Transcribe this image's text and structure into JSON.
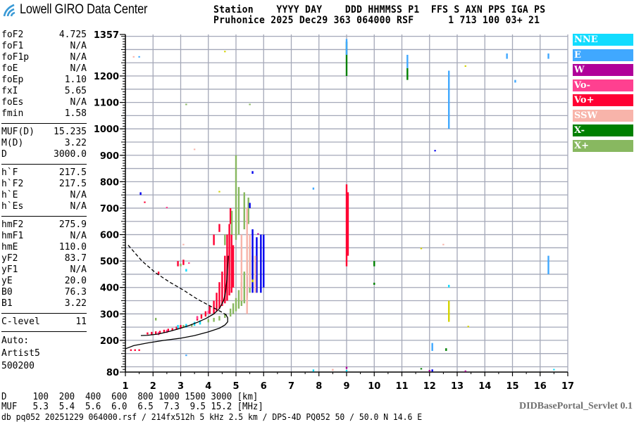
{
  "logo": {
    "text": "Lowell GIRO Data Center"
  },
  "header": {
    "line1": "Station    YYYY DAY    DDD HHMMSS P1  FFS S AXN PPS IGA PS",
    "line2": "Pruhonice 2025 Dec29 363 064000 RSF      1 713 100 03+ 21"
  },
  "params": {
    "group1": [
      [
        "foF2",
        "4.725"
      ],
      [
        "foF1",
        "N/A"
      ],
      [
        "foF1p",
        "N/A"
      ],
      [
        "foE",
        "N/A"
      ],
      [
        "foEp",
        "1.10"
      ],
      [
        "fxI",
        "5.65"
      ],
      [
        "foEs",
        "N/A"
      ],
      [
        "fmin",
        "1.58"
      ]
    ],
    "group2": [
      [
        "MUF(D)",
        "15.235"
      ],
      [
        "M(D)",
        "3.22"
      ],
      [
        "D",
        "3000.0"
      ]
    ],
    "group3": [
      [
        "h`F",
        "217.5"
      ],
      [
        "h`F2",
        "217.5"
      ],
      [
        "h`E",
        "N/A"
      ],
      [
        "h`Es",
        "N/A"
      ]
    ],
    "group4": [
      [
        "hmF2",
        "275.9"
      ],
      [
        "hmF1",
        "N/A"
      ],
      [
        "hmE",
        "110.0"
      ],
      [
        "yF2",
        "83.7"
      ],
      [
        "yF1",
        "N/A"
      ],
      [
        "yE",
        "20.0"
      ],
      [
        "B0",
        "76.3"
      ],
      [
        "B1",
        "3.22"
      ]
    ],
    "group5": [
      [
        "C-level",
        "11"
      ]
    ],
    "autoscaler": [
      "Auto:",
      "Artist5",
      "500200"
    ]
  },
  "muf_table": {
    "d_row": "D     100  200  400  600  800 1000 1500 3000 [km]",
    "muf_row": "MUF   5.3  5.4  5.6  6.0  6.5  7.3  9.5 15.2 [MHz]"
  },
  "footer": {
    "file_info": "db pq052 20251229 064000.rsf / 214fx512h 5 kHz 2.5 km / DPS-4D PQ052 50 / 50.0 N 14.6 E",
    "servlet": "DIDBasePortal_Servlet 0.1"
  },
  "chart_data": {
    "type": "scatter",
    "xlim": [
      1,
      17
    ],
    "ylim": [
      80,
      1357
    ],
    "xticks": [
      1,
      2,
      3,
      4,
      5,
      6,
      7,
      8,
      9,
      10,
      11,
      12,
      13,
      14,
      15,
      16,
      17
    ],
    "yticks": [
      1357,
      1200,
      1100,
      1000,
      900,
      800,
      700,
      600,
      500,
      400,
      300,
      200,
      80
    ],
    "grid": true,
    "legend_placement": "right",
    "legend": [
      {
        "name": "NNE",
        "color": "#12dcff"
      },
      {
        "name": "E",
        "color": "#40a8ff"
      },
      {
        "name": "W",
        "color": "#b0009a"
      },
      {
        "name": "Vo-",
        "color": "#ff4090"
      },
      {
        "name": "Vo+",
        "color": "#ff0033"
      },
      {
        "name": "SSW",
        "color": "#f8b4aa"
      },
      {
        "name": "X-",
        "color": "#008000"
      },
      {
        "name": "X+",
        "color": "#88b860"
      }
    ],
    "series": [
      {
        "name": "Vo+",
        "color": "#ff0033",
        "streaks": [
          [
            1.2,
            160,
            166
          ],
          [
            1.35,
            160,
            166
          ],
          [
            1.5,
            160,
            166
          ],
          [
            1.8,
            222,
            230
          ],
          [
            1.95,
            222,
            232
          ],
          [
            2.1,
            222,
            234
          ],
          [
            2.25,
            225,
            236
          ],
          [
            2.4,
            228,
            240
          ],
          [
            2.55,
            232,
            244
          ],
          [
            2.7,
            236,
            246
          ],
          [
            2.85,
            240,
            252
          ],
          [
            3.0,
            245,
            258
          ],
          [
            3.6,
            275,
            290
          ],
          [
            3.75,
            282,
            298
          ],
          [
            3.9,
            290,
            310
          ],
          [
            4.05,
            300,
            330
          ],
          [
            4.2,
            300,
            350
          ],
          [
            4.3,
            310,
            380
          ],
          [
            4.4,
            320,
            420
          ],
          [
            4.5,
            330,
            460
          ],
          [
            4.6,
            340,
            520
          ],
          [
            4.68,
            350,
            600
          ],
          [
            4.76,
            370,
            640
          ],
          [
            4.84,
            380,
            600
          ],
          [
            4.9,
            400,
            560
          ],
          [
            4.2,
            560,
            600
          ],
          [
            4.4,
            610,
            640
          ],
          [
            4.8,
            640,
            700
          ],
          [
            9.0,
            480,
            790
          ],
          [
            9.05,
            520,
            760
          ],
          [
            2.2,
            450,
            460
          ],
          [
            2.9,
            480,
            500
          ],
          [
            3.1,
            485,
            505
          ],
          [
            1.7,
            720,
            725
          ]
        ]
      },
      {
        "name": "Vo-",
        "color": "#ff4090",
        "streaks": [
          [
            2.2,
            220,
            232
          ],
          [
            2.5,
            228,
            240
          ],
          [
            3.2,
            250,
            260
          ],
          [
            3.6,
            280,
            292
          ],
          [
            4.0,
            300,
            312
          ],
          [
            3.3,
            490,
            495
          ],
          [
            2.5,
            700,
            705
          ]
        ]
      },
      {
        "name": "X+",
        "color": "#88b860",
        "streaks": [
          [
            3.1,
            250,
            258
          ],
          [
            3.4,
            252,
            262
          ],
          [
            3.7,
            260,
            270
          ],
          [
            4.0,
            268,
            280
          ],
          [
            4.2,
            270,
            285
          ],
          [
            4.4,
            275,
            292
          ],
          [
            4.6,
            285,
            300
          ],
          [
            4.8,
            290,
            320
          ],
          [
            4.9,
            300,
            340
          ],
          [
            5.0,
            310,
            360
          ],
          [
            5.1,
            320,
            390
          ],
          [
            5.2,
            330,
            420
          ],
          [
            5.3,
            340,
            460
          ],
          [
            5.4,
            360,
            500
          ],
          [
            5.5,
            380,
            560
          ],
          [
            5.6,
            400,
            520
          ],
          [
            5.0,
            580,
            900
          ],
          [
            5.1,
            600,
            780
          ],
          [
            5.3,
            620,
            760
          ],
          [
            4.6,
            560,
            600
          ],
          [
            4.85,
            600,
            690
          ],
          [
            5.45,
            640,
            740
          ],
          [
            2.1,
            275,
            285
          ],
          [
            3.0,
            480,
            490
          ],
          [
            5.5,
            1090,
            1095
          ],
          [
            3.2,
            1090,
            1095
          ]
        ]
      },
      {
        "name": "X-",
        "color": "#008000",
        "streaks": [
          [
            9.0,
            1200,
            1330
          ],
          [
            10.0,
            480,
            500
          ],
          [
            10.0,
            410,
            418
          ],
          [
            11.2,
            1185,
            1230
          ],
          [
            12.6,
            160,
            170
          ],
          [
            11.7,
            90,
            95
          ]
        ]
      },
      {
        "name": "W",
        "color": "#b0009a",
        "streaks": [
          [
            5.8,
            600,
            605
          ],
          [
            12.0,
            82,
            88
          ],
          [
            13.3,
            82,
            86
          ],
          [
            9.0,
            92,
            100
          ]
        ]
      },
      {
        "name": "",
        "color": "#0000ee",
        "streaks": [
          [
            5.6,
            380,
            620
          ],
          [
            5.75,
            380,
            590
          ],
          [
            5.9,
            380,
            600
          ],
          [
            6.0,
            400,
            600
          ],
          [
            5.4,
            370,
            440
          ],
          [
            5.5,
            700,
            720
          ],
          [
            5.6,
            830,
            840
          ],
          [
            12.2,
            915,
            920
          ],
          [
            1.55,
            750,
            760
          ],
          [
            12.1,
            82,
            90
          ]
        ]
      },
      {
        "name": "E",
        "color": "#40a8ff",
        "streaks": [
          [
            11.2,
            1230,
            1280
          ],
          [
            12.7,
            1000,
            1220
          ],
          [
            16.3,
            450,
            520
          ],
          [
            12.1,
            160,
            190
          ],
          [
            14.8,
            1265,
            1285
          ],
          [
            16.3,
            1265,
            1285
          ],
          [
            15.1,
            1175,
            1185
          ],
          [
            7.8,
            770,
            778
          ],
          [
            9.0,
            1280,
            1340
          ],
          [
            1.5,
            1270,
            1275
          ],
          [
            3.2,
            142,
            146
          ]
        ]
      },
      {
        "name": "NNE",
        "color": "#12dcff",
        "streaks": [
          [
            2.9,
            245,
            258
          ],
          [
            3.2,
            248,
            262
          ],
          [
            3.5,
            255,
            270
          ],
          [
            3.7,
            260,
            275
          ],
          [
            7.8,
            82,
            90
          ],
          [
            12.7,
            400,
            410
          ],
          [
            16.5,
            88,
            92
          ],
          [
            9.0,
            82,
            88
          ],
          [
            3.2,
            460,
            470
          ]
        ]
      },
      {
        "name": "SSW",
        "color": "#f8b4aa",
        "streaks": [
          [
            5.2,
            350,
            600
          ],
          [
            5.4,
            300,
            700
          ],
          [
            5.5,
            400,
            600
          ],
          [
            5.7,
            380,
            520
          ],
          [
            3.5,
            920,
            925
          ],
          [
            1.3,
            1270,
            1275
          ],
          [
            3.1,
            560,
            565
          ],
          [
            8.5,
            85,
            92
          ],
          [
            12.5,
            560,
            565
          ]
        ]
      },
      {
        "name": "",
        "color": "#d4d400",
        "streaks": [
          [
            12.7,
            270,
            350
          ],
          [
            4.4,
            760,
            765
          ],
          [
            5.6,
            420,
            430
          ],
          [
            13.3,
            1235,
            1240
          ],
          [
            13.4,
            250,
            255
          ],
          [
            4.6,
            1290,
            1295
          ],
          [
            11.7,
            545,
            550
          ]
        ]
      }
    ],
    "traces": [
      {
        "style": "solid",
        "points": [
          [
            1.56,
            218
          ],
          [
            1.8,
            219
          ],
          [
            2.2,
            224
          ],
          [
            2.6,
            234
          ],
          [
            3.0,
            246
          ],
          [
            3.3,
            256
          ],
          [
            3.6,
            268
          ],
          [
            3.9,
            282
          ],
          [
            4.2,
            300
          ],
          [
            4.4,
            320
          ],
          [
            4.55,
            350
          ],
          [
            4.62,
            380
          ],
          [
            4.67,
            430
          ],
          [
            4.7,
            480
          ],
          [
            4.72,
            520
          ]
        ]
      },
      {
        "style": "solid",
        "points": [
          [
            1.0,
            168
          ],
          [
            1.3,
            180
          ],
          [
            1.8,
            190
          ],
          [
            2.4,
            200
          ],
          [
            3.0,
            208
          ],
          [
            3.5,
            218
          ],
          [
            4.0,
            232
          ],
          [
            4.4,
            246
          ],
          [
            4.6,
            258
          ],
          [
            4.7,
            270
          ],
          [
            4.7,
            285
          ],
          [
            4.62,
            300
          ]
        ]
      },
      {
        "style": "dashed",
        "points": [
          [
            1.1,
            560
          ],
          [
            1.6,
            500
          ],
          [
            2.1,
            455
          ],
          [
            2.6,
            420
          ],
          [
            3.1,
            390
          ],
          [
            3.6,
            356
          ],
          [
            4.1,
            328
          ],
          [
            4.5,
            306
          ],
          [
            4.7,
            292
          ]
        ]
      }
    ]
  }
}
